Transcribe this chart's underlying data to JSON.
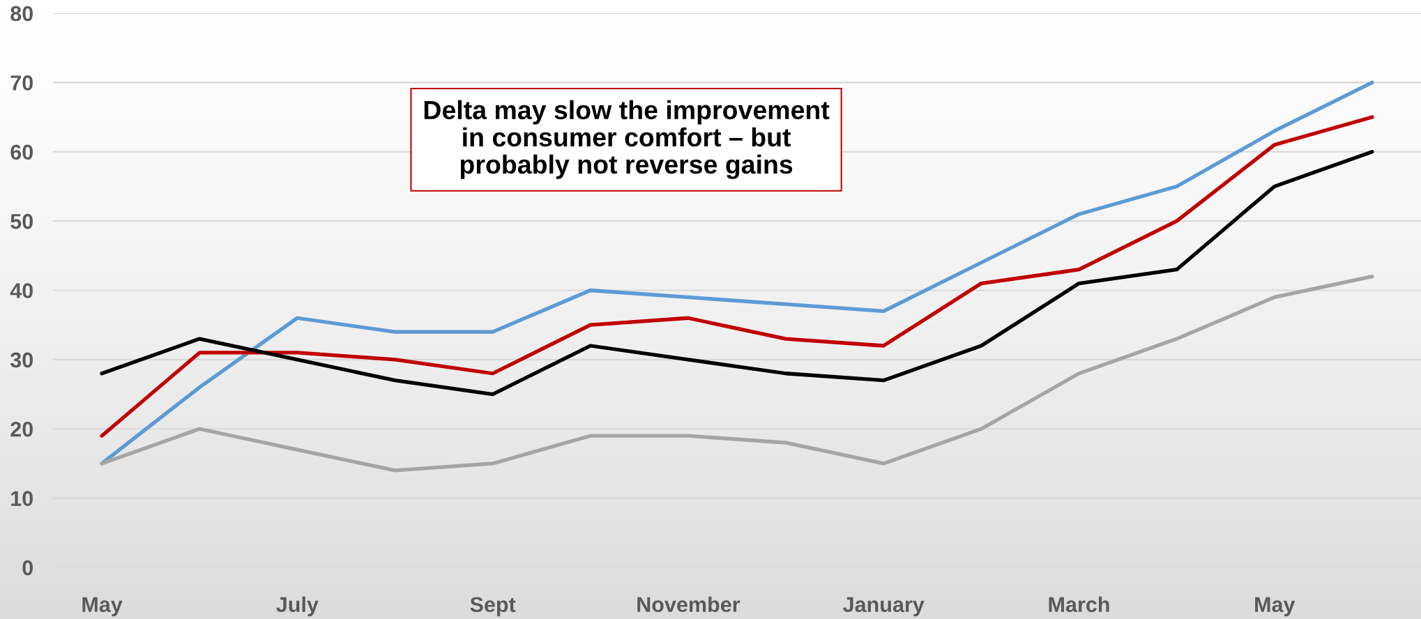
{
  "chart_data": {
    "type": "line",
    "categories": [
      "May",
      null,
      "July",
      null,
      "Sept",
      null,
      "November",
      null,
      "January",
      null,
      "March",
      null,
      "May",
      null
    ],
    "series": [
      {
        "color": "#5b9bd5",
        "values": [
          15,
          26,
          36,
          34,
          34,
          40,
          39,
          38,
          37,
          44,
          51,
          55,
          63,
          70
        ]
      },
      {
        "color": "#c00000",
        "values": [
          19,
          31,
          31,
          30,
          28,
          35,
          36,
          33,
          32,
          41,
          43,
          50,
          61,
          65
        ]
      },
      {
        "color": "#000000",
        "values": [
          28,
          33,
          30,
          27,
          25,
          32,
          30,
          28,
          27,
          32,
          41,
          43,
          55,
          60
        ]
      },
      {
        "color": "#a5a5a5",
        "values": [
          15,
          20,
          17,
          14,
          15,
          19,
          19,
          18,
          15,
          20,
          28,
          33,
          39,
          42
        ]
      }
    ],
    "ylim": [
      0,
      80
    ],
    "yticks": [
      0,
      10,
      20,
      30,
      40,
      50,
      60,
      70,
      80
    ],
    "grid": "y",
    "marker": "none",
    "line_style": "solid",
    "annotations": [
      "Delta may slow the improvement\nin consumer comfort – but\nprobably not reverse gains"
    ]
  }
}
